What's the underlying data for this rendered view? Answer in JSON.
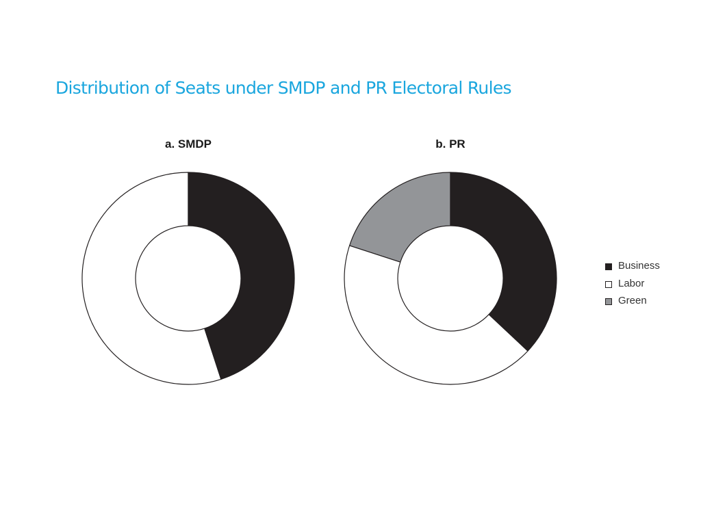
{
  "title": "Distribution of Seats under SMDP and PR Electoral Rules",
  "chart_data": [
    {
      "type": "pie",
      "title": "a. SMDP",
      "donut": true,
      "categories": [
        "Business",
        "Labor"
      ],
      "values": [
        45,
        55
      ],
      "colors": [
        "#231f20",
        "#ffffff"
      ]
    },
    {
      "type": "pie",
      "title": "b. PR",
      "donut": true,
      "categories": [
        "Business",
        "Labor",
        "Green"
      ],
      "values": [
        37,
        43,
        20
      ],
      "colors": [
        "#231f20",
        "#ffffff",
        "#939598"
      ]
    }
  ],
  "legend": {
    "placement": "right",
    "items": [
      {
        "label": "Business",
        "color": "#231f20"
      },
      {
        "label": "Labor",
        "color": "#ffffff"
      },
      {
        "label": "Green",
        "color": "#939598"
      }
    ]
  }
}
